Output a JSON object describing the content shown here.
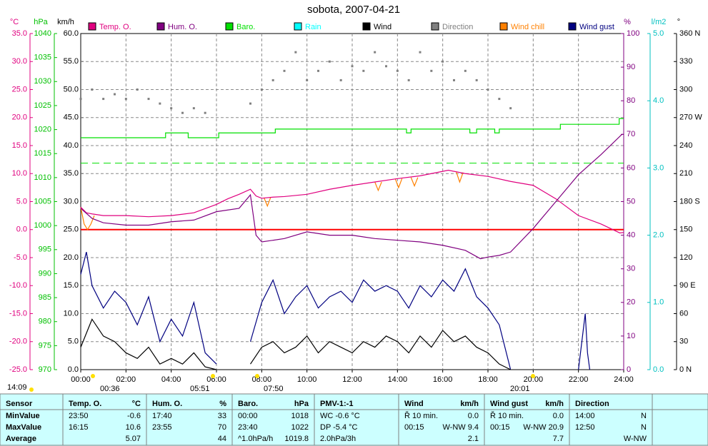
{
  "chart_data": {
    "type": "line",
    "title": "sobota, 2007-04-21",
    "xlim": [
      0,
      24
    ],
    "xticks": [
      {
        "value": 0,
        "label": "00:00"
      },
      {
        "value": 2,
        "label": "02:00"
      },
      {
        "value": 4,
        "label": "04:00"
      },
      {
        "value": 6,
        "label": "06:00"
      },
      {
        "value": 8,
        "label": "08:00"
      },
      {
        "value": 10,
        "label": "10:00"
      },
      {
        "value": 12,
        "label": "12:00"
      },
      {
        "value": 14,
        "label": "14:00"
      },
      {
        "value": 16,
        "label": "16:00"
      },
      {
        "value": 18,
        "label": "18:00"
      },
      {
        "value": 20,
        "label": "20:00"
      },
      {
        "value": 22,
        "label": "22:00"
      },
      {
        "value": 24,
        "label": "24:00"
      }
    ],
    "grid": true,
    "axes": [
      {
        "label": "°C",
        "color": "#e0007f",
        "side": "left",
        "lim": [
          -25,
          35
        ],
        "ticks": [
          {
            "value": -25,
            "label": "-25.0"
          },
          {
            "value": -20,
            "label": "-20.0"
          },
          {
            "value": -15,
            "label": "-15.0"
          },
          {
            "value": -10,
            "label": "-10.0"
          },
          {
            "value": -5,
            "label": "-5.0"
          },
          {
            "value": 0,
            "label": "0.0"
          },
          {
            "value": 5,
            "label": "5.0"
          },
          {
            "value": 10,
            "label": "10.0"
          },
          {
            "value": 15,
            "label": "15.0"
          },
          {
            "value": 20,
            "label": "20.0"
          },
          {
            "value": 25,
            "label": "25.0"
          },
          {
            "value": 30,
            "label": "30.0"
          },
          {
            "value": 35,
            "label": "35.0"
          }
        ]
      },
      {
        "label": "hPa",
        "color": "#00c000",
        "side": "left",
        "lim": [
          970,
          1040
        ],
        "ticks": [
          970,
          975,
          980,
          985,
          990,
          995,
          1000,
          1005,
          1010,
          1015,
          1020,
          1025,
          1030,
          1035,
          1040
        ]
      },
      {
        "label": "km/h",
        "color": "#000000",
        "side": "left",
        "lim": [
          0,
          60
        ],
        "ticks": [
          {
            "value": 0,
            "label": "0.0"
          },
          {
            "value": 5,
            "label": "5.0"
          },
          {
            "value": 10,
            "label": "10.0"
          },
          {
            "value": 15,
            "label": "15.0"
          },
          {
            "value": 20,
            "label": "20.0"
          },
          {
            "value": 25,
            "label": "25.0"
          },
          {
            "value": 30,
            "label": "30.0"
          },
          {
            "value": 35,
            "label": "35.0"
          },
          {
            "value": 40,
            "label": "40.0"
          },
          {
            "value": 45,
            "label": "45.0"
          },
          {
            "value": 50,
            "label": "50.0"
          },
          {
            "value": 55,
            "label": "55.0"
          },
          {
            "value": 60,
            "label": "60.0"
          }
        ]
      },
      {
        "label": "%",
        "color": "#800080",
        "side": "right",
        "lim": [
          0,
          100
        ],
        "ticks": [
          0,
          10,
          20,
          30,
          40,
          50,
          60,
          70,
          80,
          90,
          100
        ]
      },
      {
        "label": "l/m2",
        "color": "#00c0c0",
        "side": "right",
        "lim": [
          0,
          5
        ],
        "ticks": [
          {
            "value": 0,
            "label": "0.0"
          },
          {
            "value": 1,
            "label": "1.0"
          },
          {
            "value": 2,
            "label": "2.0"
          },
          {
            "value": 3,
            "label": "3.0"
          },
          {
            "value": 4,
            "label": "4.0"
          },
          {
            "value": 5,
            "label": "5.0"
          }
        ]
      },
      {
        "label": "°",
        "color": "#000000",
        "side": "right",
        "lim": [
          0,
          360
        ],
        "ticks": [
          {
            "value": 0,
            "label": "0 N"
          },
          30,
          60,
          {
            "value": 90,
            "label": "90 E"
          },
          120,
          150,
          {
            "value": 180,
            "label": "180 S"
          },
          210,
          240,
          {
            "value": 270,
            "label": "270 W"
          },
          300,
          330,
          {
            "value": 360,
            "label": "360 N"
          }
        ]
      }
    ],
    "reference_lines": [
      {
        "axis": 0,
        "value": 0,
        "color": "#ff0000",
        "dashed": false
      },
      {
        "axis": 1,
        "value": 1013,
        "color": "#00e000",
        "dashed": true
      }
    ],
    "series": [
      {
        "name": "Temp. O.",
        "color": "#e0007f",
        "axis": 0,
        "style": "line",
        "x": [
          0,
          0.25,
          0.5,
          1,
          2,
          3,
          4,
          5,
          6,
          6.5,
          7,
          7.5,
          7.75,
          8,
          8.5,
          9,
          10,
          11,
          12,
          13,
          14,
          15,
          16,
          16.25,
          17,
          18,
          19,
          20,
          21,
          22,
          23,
          23.83,
          24
        ],
        "values": [
          4.0,
          3.0,
          2.8,
          2.5,
          2.5,
          2.3,
          2.5,
          3.0,
          4.5,
          5.5,
          6.3,
          7.2,
          6.0,
          5.6,
          5.8,
          5.9,
          6.3,
          7.2,
          7.9,
          8.5,
          9.1,
          9.6,
          10.4,
          10.6,
          10.0,
          9.5,
          8.6,
          7.9,
          5.5,
          2.5,
          1.0,
          -0.6,
          -0.5
        ]
      },
      {
        "name": "Hum. O.",
        "color": "#800080",
        "axis": 3,
        "style": "line",
        "x": [
          0,
          0.5,
          1,
          2,
          3,
          4,
          5,
          6,
          7,
          7.5,
          7.75,
          8,
          9,
          10,
          11,
          12,
          13,
          14,
          15,
          16,
          17,
          17.67,
          18,
          18.5,
          19,
          20,
          21,
          22,
          23,
          23.92,
          24
        ],
        "values": [
          48,
          45,
          43.7,
          43,
          43,
          44,
          44.5,
          47,
          48,
          52,
          40,
          38,
          39,
          41,
          40,
          40,
          39,
          38.5,
          38,
          37,
          35.5,
          33,
          33.5,
          34,
          35,
          42,
          50,
          58,
          64,
          70,
          70
        ]
      },
      {
        "name": "Baro.",
        "color": "#00e000",
        "axis": 1,
        "style": "step",
        "x": [
          0,
          3.75,
          4.75,
          6.1,
          8.6,
          14.4,
          14.6,
          17.2,
          17.5,
          18.3,
          18.5,
          21.2,
          23.8,
          24
        ],
        "values": [
          1018.3,
          1019.3,
          1018.3,
          1019.3,
          1020.1,
          1019.3,
          1020.1,
          1019.3,
          1020.1,
          1019.3,
          1020.1,
          1021.1,
          1022.3,
          1022.3
        ]
      },
      {
        "name": "Rain",
        "color": "#00ffff",
        "axis": 4,
        "style": "line",
        "x": [],
        "values": []
      },
      {
        "name": "Wind",
        "color": "#000000",
        "axis": 2,
        "style": "line",
        "x": [
          0,
          0.5,
          1,
          1.5,
          2,
          2.5,
          3,
          3.5,
          4,
          4.5,
          5,
          5.5,
          6,
          6.5,
          7,
          7.5,
          8,
          8.5,
          9,
          9.5,
          10,
          10.5,
          11,
          11.5,
          12,
          12.5,
          13,
          13.5,
          14,
          14.5,
          15,
          15.5,
          16,
          16.5,
          17,
          17.5,
          18,
          18.5,
          19
        ],
        "values": [
          4,
          9,
          6,
          5,
          3,
          2,
          4,
          1,
          2,
          1,
          3,
          0.5,
          0,
          null,
          null,
          1,
          4,
          5,
          3,
          4,
          6,
          3,
          5,
          4,
          3,
          5,
          4,
          6,
          5,
          3,
          6,
          4,
          7,
          5,
          6,
          4,
          3,
          1,
          0
        ]
      },
      {
        "name": "Direction",
        "color": "#808080",
        "axis": 5,
        "style": "dots",
        "x": [
          0,
          0.5,
          1,
          1.5,
          2,
          2.5,
          3,
          3.5,
          4,
          4.5,
          5,
          5.5,
          7.5,
          8,
          8.5,
          9,
          9.5,
          10,
          10.5,
          11,
          11.5,
          12,
          12.5,
          13,
          13.5,
          14,
          14.5,
          15,
          15.5,
          16,
          16.5,
          17,
          17.5,
          18,
          18.5,
          19
        ],
        "values": [
          290,
          300,
          290,
          295,
          290,
          300,
          290,
          285,
          280,
          275,
          280,
          275,
          285,
          300,
          310,
          320,
          340,
          310,
          320,
          330,
          310,
          325,
          320,
          340,
          325,
          320,
          310,
          340,
          320,
          330,
          310,
          320,
          310,
          300,
          290,
          280
        ]
      },
      {
        "name": "Wind chill",
        "color": "#ff8000",
        "axis": 0,
        "style": "line",
        "x": [
          0,
          0.15,
          0.3,
          0.45,
          0.6,
          1,
          8.1,
          8.25,
          8.4,
          9,
          13.0,
          13.15,
          13.3,
          13.5,
          13.9,
          14.05,
          14.2,
          14.4,
          14.6,
          14.75,
          14.9,
          15.5,
          16.6,
          16.75,
          16.9
        ],
        "values": [
          4.0,
          1.0,
          0.0,
          1.0,
          2.5,
          null,
          5.7,
          4.2,
          5.8,
          null,
          8.5,
          7.0,
          8.5,
          null,
          9.1,
          7.5,
          9.1,
          null,
          9.3,
          7.8,
          9.3,
          null,
          10.3,
          8.5,
          10.2
        ]
      },
      {
        "name": "Wind gust",
        "color": "#000080",
        "axis": 2,
        "style": "line",
        "x": [
          0,
          0.25,
          0.5,
          1,
          1.5,
          2,
          2.5,
          3,
          3.5,
          4,
          4.5,
          5,
          5.5,
          6,
          6.5,
          7,
          7.5,
          8,
          8.5,
          9,
          9.5,
          10,
          10.5,
          11,
          11.5,
          12,
          12.5,
          13,
          13.5,
          14,
          14.5,
          15,
          15.5,
          16,
          16.5,
          17,
          17.5,
          18,
          18.5,
          19,
          19.5,
          22,
          22.3,
          22.4,
          22.5
        ],
        "values": [
          17,
          21,
          15,
          11,
          14,
          12,
          8,
          13,
          5,
          9,
          6,
          12,
          3,
          1,
          null,
          null,
          5,
          12,
          16,
          10,
          13,
          15,
          11,
          13,
          14,
          12,
          16,
          14,
          15,
          14,
          11,
          15,
          13,
          16,
          14,
          18,
          13,
          11,
          8,
          0,
          null,
          0,
          10,
          3,
          0
        ]
      }
    ],
    "time_markers": [
      "14:09",
      "00:36",
      "05:51",
      "07:50",
      "20:01"
    ]
  },
  "table": {
    "header": [
      [
        "Sensor"
      ],
      [
        "Temp. O.",
        "°C"
      ],
      [
        "Hum. O.",
        "%"
      ],
      [
        "Baro.",
        "hPa"
      ],
      [
        "PMV-1:-1"
      ],
      [
        "Wind",
        "km/h"
      ],
      [
        "Wind gust",
        "km/h"
      ],
      [
        "Direction"
      ]
    ],
    "rows": [
      [
        [
          "MinValue"
        ],
        [
          "23:50",
          "-0.6"
        ],
        [
          "17:40",
          "33"
        ],
        [
          "00:00",
          "1018"
        ],
        [
          "WC -0.6 °C"
        ],
        [
          "Ř 10 min.",
          "0.0"
        ],
        [
          "Ř 10 min.",
          "0.0"
        ],
        [
          "14:00",
          "N"
        ]
      ],
      [
        [
          "MaxValue"
        ],
        [
          "16:15",
          "10.6"
        ],
        [
          "23:55",
          "70"
        ],
        [
          "23:40",
          "1022"
        ],
        [
          "DP -5.4 °C"
        ],
        [
          "00:15",
          "W-NW 9.4"
        ],
        [
          "00:15",
          "W-NW 20.9"
        ],
        [
          "12:50",
          "N"
        ]
      ],
      [
        [
          "Average"
        ],
        [
          "5.07"
        ],
        [
          "44"
        ],
        [
          "^1.0hPa/h",
          "1019.8"
        ],
        [
          "2.0hPa/3h"
        ],
        [
          "2.1"
        ],
        [
          "7.7"
        ],
        [
          "W-NW"
        ]
      ]
    ]
  }
}
